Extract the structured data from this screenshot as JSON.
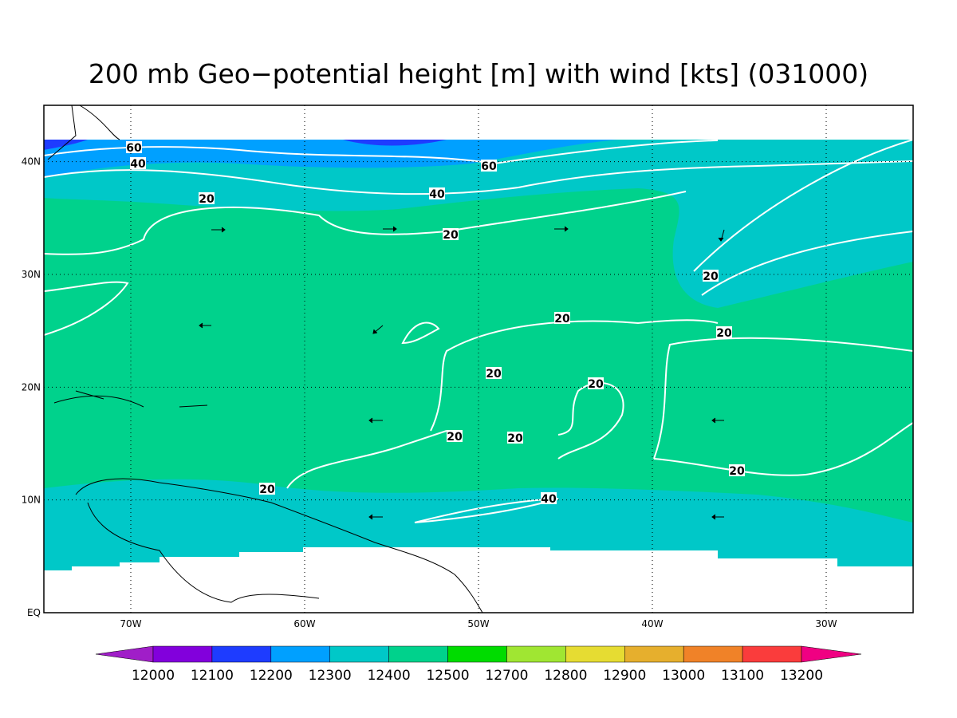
{
  "title": "200 mb Geo−potential height [m] with wind [kts] (031000)",
  "map": {
    "lon_range": [
      -75,
      -25
    ],
    "lat_range": [
      0,
      45
    ],
    "lon_ticks": [
      {
        "value": -70,
        "label": "70W"
      },
      {
        "value": -60,
        "label": "60W"
      },
      {
        "value": -50,
        "label": "50W"
      },
      {
        "value": -40,
        "label": "40W"
      },
      {
        "value": -30,
        "label": "30W"
      }
    ],
    "lat_ticks": [
      {
        "value": 0,
        "label": "EQ"
      },
      {
        "value": 10,
        "label": "10N"
      },
      {
        "value": 20,
        "label": "20N"
      },
      {
        "value": 30,
        "label": "30N"
      },
      {
        "value": 40,
        "label": "40N"
      }
    ],
    "contour_labels": [
      60,
      40,
      60,
      40,
      20,
      20,
      20,
      20,
      20,
      20,
      20,
      20,
      20,
      20,
      20,
      40
    ]
  },
  "colorbar": {
    "levels": [
      12000,
      12100,
      12200,
      12300,
      12400,
      12500,
      12700,
      12800,
      12900,
      13000,
      13100,
      13200
    ],
    "colors": [
      "#a01ec8",
      "#8200dc",
      "#1e3cff",
      "#00a0ff",
      "#00c8c8",
      "#00d28c",
      "#00dc00",
      "#a0e632",
      "#e6dc32",
      "#e6af2d",
      "#f08228",
      "#fa3c3c",
      "#f00082"
    ]
  }
}
